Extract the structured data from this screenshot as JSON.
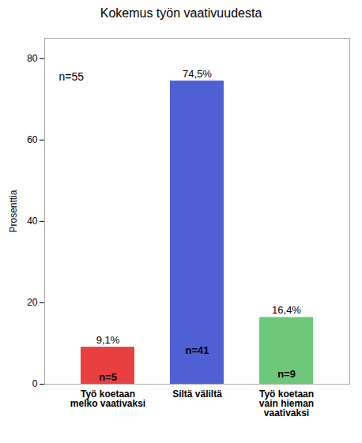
{
  "chart_data": {
    "type": "bar",
    "title": "Kokemus työn vaativuudesta",
    "categories": [
      "Työ koetaan\nmelko vaativaksi",
      "Siltä väliltä",
      "Työ koetaan\nvain hieman\nvaativaksi"
    ],
    "values": [
      9.1,
      74.5,
      16.4
    ],
    "value_labels": [
      "9,1%",
      "74,5%",
      "16,4%"
    ],
    "data_labels": true,
    "colors": [
      "#e84040",
      "#4f5fd4",
      "#6dc87a"
    ],
    "n_labels": [
      "n=5",
      "n=41",
      "n=9"
    ],
    "annotation": "n=55",
    "ylabel": "Prosenttia",
    "ylim": [
      0,
      85
    ],
    "yticks": [
      0,
      20,
      40,
      60,
      80
    ],
    "grid": false
  }
}
